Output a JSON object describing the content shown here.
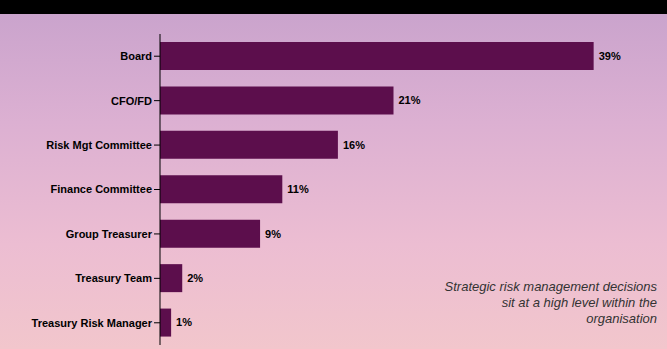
{
  "chart_data": {
    "type": "bar",
    "orientation": "horizontal",
    "categories": [
      "Board",
      "CFO/FD",
      "Risk Mgt Committee",
      "Finance Committee",
      "Group Treasurer",
      "Treasury Team",
      "Treasury Risk Manager"
    ],
    "values": [
      39,
      21,
      16,
      11,
      9,
      2,
      1
    ],
    "value_labels": [
      "39%",
      "21%",
      "16%",
      "11%",
      "9%",
      "2%",
      "1%"
    ],
    "data_labels": true,
    "color": "#5c0e4c",
    "xlim": [
      0,
      42
    ],
    "tick_labels": "y",
    "grid": false,
    "annotation": "Strategic risk management decisions sit at a high level within the organisation"
  }
}
